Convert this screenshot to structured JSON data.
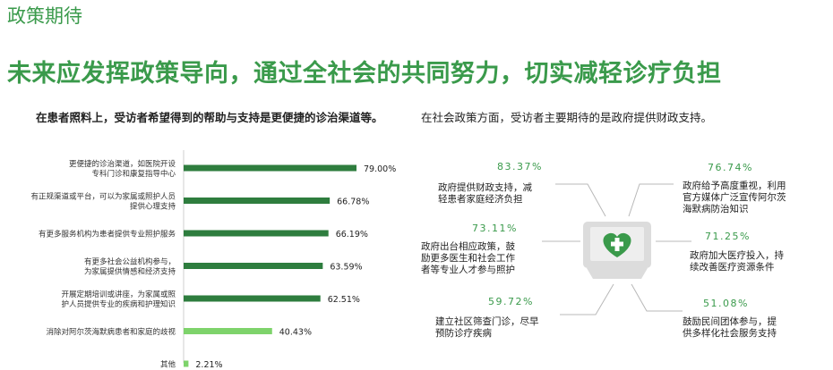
{
  "page": {
    "section_title": "政策期待",
    "headline": "未来应发挥政策导向，通过全社会的共同努力，切实减轻诊疗负担",
    "left_caption": "在患者照料上，受访者希望得到的帮助与支持是更便捷的诊治渠道等。",
    "right_caption": "在社会政策方面，受访者主要期待的是政府提供财政支持。"
  },
  "colors": {
    "green": "#3a9a4b",
    "dark_green": "#2e7d3e",
    "light_green": "#7ed36b",
    "icon_bg": "#e0e0e0",
    "line": "#b8b8b8"
  },
  "chart_data": {
    "type": "bar",
    "orientation": "horizontal",
    "categories": [
      [
        "更便捷的诊治渠道，如医院开设",
        "专科门诊和康复指导中心"
      ],
      [
        "有正规渠道或平台，可以为家属或照护人员",
        "提供心理支持"
      ],
      [
        "有更多服务机构为患者提供专业照护服务"
      ],
      [
        "有更多社会公益机构参与，",
        "为家属提供情感和经济支持"
      ],
      [
        "开展定期培训或讲座，为家属或照",
        "护人员提供专业的疾病和护理知识"
      ],
      [
        "消除对阿尔茨海默病患者和家庭的歧视"
      ],
      [
        "其他"
      ]
    ],
    "values": [
      79.0,
      66.78,
      66.19,
      63.59,
      62.51,
      40.43,
      2.21
    ],
    "value_labels": [
      "79.00%",
      "66.78%",
      "66.19%",
      "63.59%",
      "62.51%",
      "40.43%",
      "2.21%"
    ],
    "bar_colors": [
      "#2e7d3e",
      "#2e7d3e",
      "#2e7d3e",
      "#2e7d3e",
      "#2e7d3e",
      "#7ed36b",
      "#7ed36b"
    ],
    "xlim": [
      0,
      100
    ]
  },
  "expectations": [
    {
      "pct": "83.37%",
      "lines": [
        "政府提供财政支持，减",
        "轻患者家庭经济负担"
      ]
    },
    {
      "pct": "73.11%",
      "lines": [
        "政府出台相应政策，鼓",
        "励更多医生和社会工作",
        "者等专业人才参与照护"
      ]
    },
    {
      "pct": "59.72%",
      "lines": [
        "建立社区筛查门诊，尽早",
        "预防诊疗疾病"
      ]
    },
    {
      "pct": "76.74%",
      "lines": [
        "政府给予高度重视，利用",
        "官方媒体广泛宣传阿尔茨",
        "海默病防治知识"
      ]
    },
    {
      "pct": "71.25%",
      "lines": [
        "政府加大医疗投入，持",
        "续改善医疗资源条件"
      ]
    },
    {
      "pct": "51.08%",
      "lines": [
        "鼓励民间团体参与，提",
        "供多样化社会服务支持"
      ]
    }
  ]
}
